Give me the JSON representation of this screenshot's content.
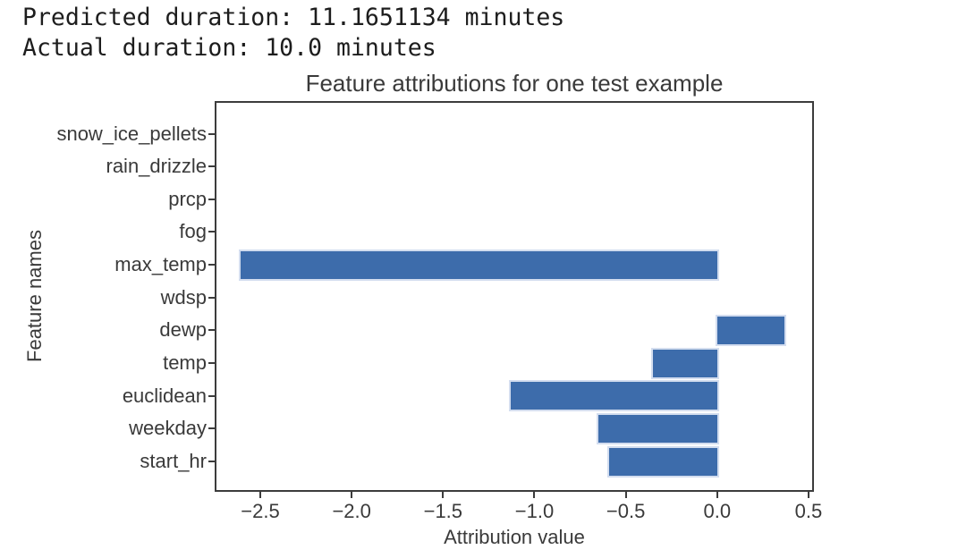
{
  "output_text": {
    "line1": "Predicted duration: 11.1651134 minutes",
    "line2": "Actual duration: 10.0 minutes"
  },
  "chart_data": {
    "type": "bar",
    "orientation": "horizontal",
    "title": "Feature attributions for one test example",
    "xlabel": "Attribution value",
    "ylabel": "Feature names",
    "categories_top_to_bottom": [
      "snow_ice_pellets",
      "rain_drizzle",
      "prcp",
      "fog",
      "max_temp",
      "wdsp",
      "dewp",
      "temp",
      "euclidean",
      "weekday",
      "start_hr"
    ],
    "values_top_to_bottom": [
      0,
      0,
      0,
      0,
      -2.61,
      0,
      0.37,
      -0.35,
      -1.13,
      -0.65,
      -0.59
    ],
    "xlim": [
      -2.74,
      0.52
    ],
    "xticks": [
      -2.5,
      -2.0,
      -1.5,
      -1.0,
      -0.5,
      0.0,
      0.5
    ],
    "xtick_labels": [
      "−2.5",
      "−2.0",
      "−1.5",
      "−1.0",
      "−0.5",
      "0.0",
      "0.5"
    ],
    "grid": false,
    "legend": null,
    "bar_color": "#3d6cab",
    "text_color": "#3a3a3a",
    "spine_color": "#3c3c3c",
    "background_color": "#ffffff"
  }
}
